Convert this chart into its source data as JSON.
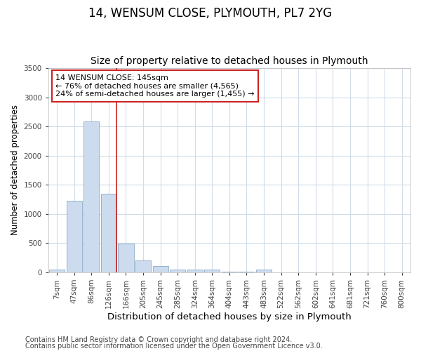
{
  "title1": "14, WENSUM CLOSE, PLYMOUTH, PL7 2YG",
  "title2": "Size of property relative to detached houses in Plymouth",
  "xlabel": "Distribution of detached houses by size in Plymouth",
  "ylabel": "Number of detached properties",
  "categories": [
    "7sqm",
    "47sqm",
    "86sqm",
    "126sqm",
    "166sqm",
    "205sqm",
    "245sqm",
    "285sqm",
    "324sqm",
    "364sqm",
    "404sqm",
    "443sqm",
    "483sqm",
    "522sqm",
    "562sqm",
    "602sqm",
    "641sqm",
    "681sqm",
    "721sqm",
    "760sqm",
    "800sqm"
  ],
  "values": [
    50,
    1230,
    2590,
    1350,
    490,
    200,
    110,
    50,
    50,
    40,
    10,
    5,
    40,
    0,
    0,
    0,
    0,
    0,
    0,
    0,
    0
  ],
  "bar_color": "#ccdcee",
  "bar_edge_color": "#8aaac8",
  "annotation_line1": "14 WENSUM CLOSE: 145sqm",
  "annotation_line2": "← 76% of detached houses are smaller (4,565)",
  "annotation_line3": "24% of semi-detached houses are larger (1,455) →",
  "annotation_box_color": "#ffffff",
  "annotation_box_edge": "#cc2222",
  "red_line_color": "#cc2222",
  "ylim": [
    0,
    3500
  ],
  "yticks": [
    0,
    500,
    1000,
    1500,
    2000,
    2500,
    3000,
    3500
  ],
  "footer1": "Contains HM Land Registry data © Crown copyright and database right 2024.",
  "footer2": "Contains public sector information licensed under the Open Government Licence v3.0.",
  "background_color": "#ffffff",
  "plot_bg_color": "#ffffff",
  "grid_color": "#d0dce8",
  "title1_fontsize": 12,
  "title2_fontsize": 10,
  "xlabel_fontsize": 9.5,
  "ylabel_fontsize": 8.5,
  "annot_fontsize": 8,
  "tick_fontsize": 7.5,
  "footer_fontsize": 7
}
